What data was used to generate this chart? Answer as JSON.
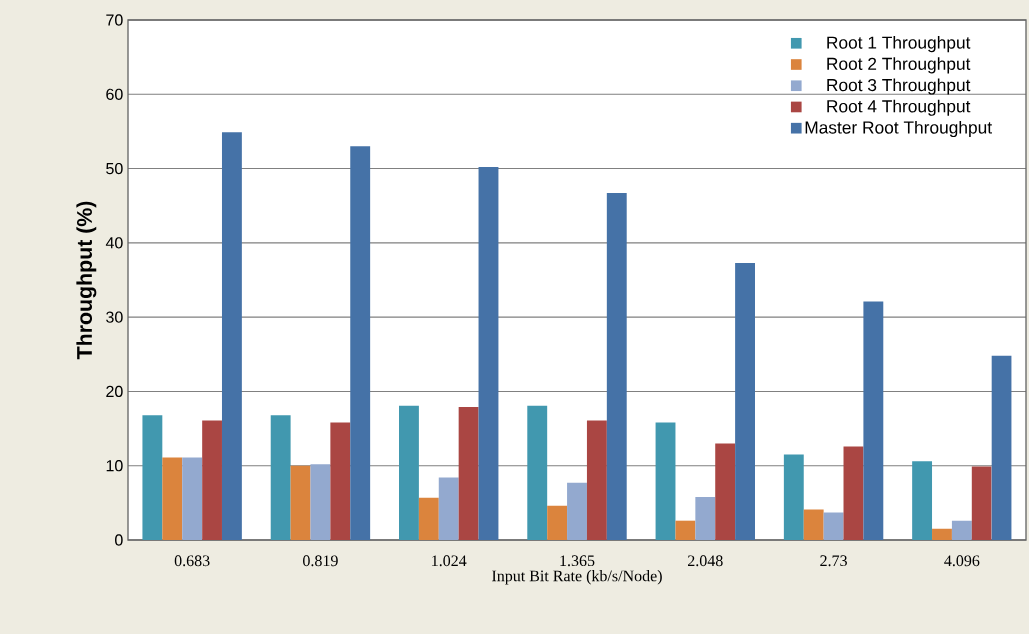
{
  "chart_data": {
    "type": "bar",
    "xlabel": "Input Bit Rate (kb/s/Node)",
    "ylabel": "Throughput (%)",
    "categories": [
      "0.683",
      "0.819",
      "1.024",
      "1.365",
      "2.048",
      "2.73",
      "4.096"
    ],
    "series": [
      {
        "name": "Root 1 Throughput",
        "color": "#4198af",
        "values": [
          16.8,
          16.8,
          18.1,
          18.1,
          15.8,
          11.5,
          10.6
        ]
      },
      {
        "name": "Root 2 Throughput",
        "color": "#db843d",
        "values": [
          11.1,
          10.0,
          5.7,
          4.6,
          2.6,
          4.1,
          1.5
        ]
      },
      {
        "name": "Root 3 Throughput",
        "color": "#93a9cf",
        "values": [
          11.1,
          10.2,
          8.4,
          7.7,
          5.8,
          3.7,
          2.6
        ]
      },
      {
        "name": "Root 4 Throughput",
        "color": "#aa4643",
        "values": [
          16.1,
          15.8,
          17.9,
          16.1,
          13.0,
          12.6,
          9.9
        ]
      },
      {
        "name": "Master Root Throughput",
        "color": "#4572a7",
        "values": [
          54.9,
          53.0,
          50.2,
          46.7,
          37.3,
          32.1,
          24.8
        ]
      }
    ],
    "ylim": [
      0,
      70
    ],
    "yticks": [
      0,
      10,
      20,
      30,
      40,
      50,
      60,
      70
    ],
    "grid": "y",
    "legend": "top right"
  }
}
